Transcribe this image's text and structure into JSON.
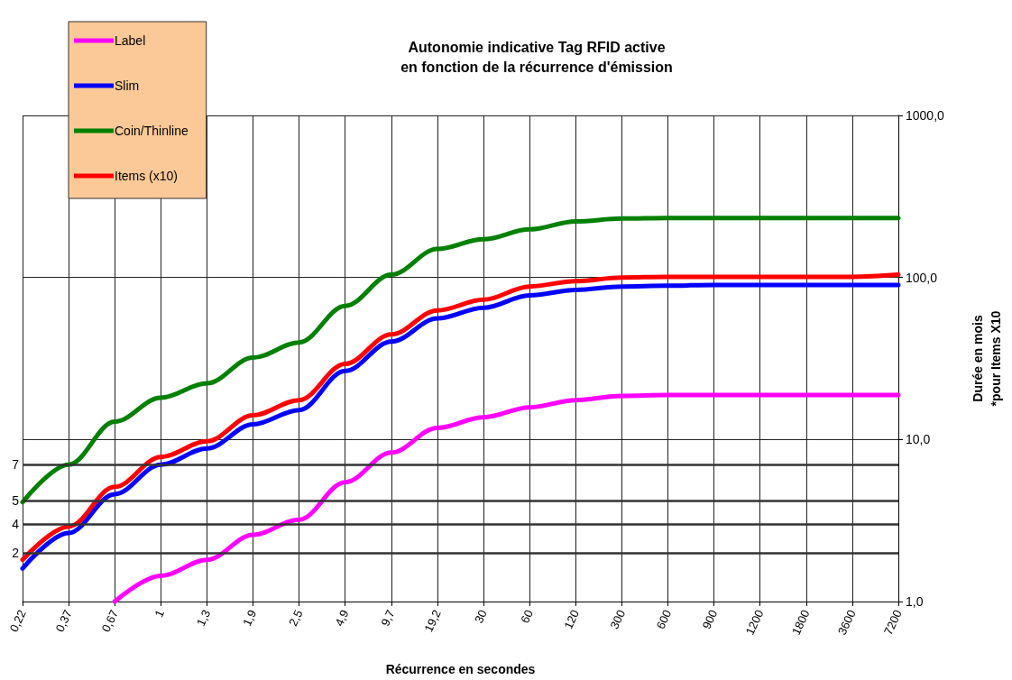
{
  "chart_data": {
    "type": "line",
    "title": "Autonomie indicative Tag RFID active\nen fonction de la récurrence d'émission",
    "xlabel": "Récurrence en secondes",
    "ylabel": "Durée en mois\n*pour Items X10",
    "categories": [
      "0,22",
      "0,37",
      "0,67",
      "1",
      "1,3",
      "1,9",
      "2,5",
      "4,9",
      "9,7",
      "19,2",
      "30",
      "60",
      "120",
      "300",
      "600",
      "900",
      "1200",
      "1800",
      "3600",
      "7200"
    ],
    "series": [
      {
        "name": "Label",
        "color": "#ff00ff",
        "values": [
          null,
          null,
          1.0,
          1.44,
          1.81,
          2.58,
          3.2,
          5.45,
          8.3,
          11.8,
          13.7,
          15.8,
          17.5,
          18.6,
          18.8,
          18.8,
          18.8,
          18.8,
          18.8,
          18.8
        ]
      },
      {
        "name": "Slim",
        "color": "#0000ff",
        "values": [
          1.6,
          2.65,
          4.6,
          7.0,
          8.8,
          12.4,
          15.2,
          26.5,
          40.2,
          55.9,
          65,
          77.6,
          83.7,
          88,
          89,
          90,
          90,
          90,
          90,
          90
        ]
      },
      {
        "name": "Coin/Thinline",
        "color": "#008000",
        "values": [
          4.1,
          7.0,
          12.9,
          18.1,
          22.2,
          32,
          39.7,
          66.7,
          104,
          150,
          172,
          198,
          222,
          231,
          233,
          233,
          233,
          233,
          233,
          233
        ]
      },
      {
        "name": "Items (x10)",
        "color": "#ff0000",
        "values": [
          1.81,
          2.9,
          5.1,
          7.8,
          9.75,
          14.1,
          17.5,
          29.3,
          44.5,
          62.6,
          72.9,
          88,
          95,
          100,
          101,
          101,
          101,
          101,
          101,
          104
        ]
      }
    ],
    "log": "y",
    "ylim": [
      1,
      1000
    ],
    "yticks": [
      {
        "value": 1,
        "label": "1,0"
      },
      {
        "value": 10,
        "label": "10,0"
      },
      {
        "value": 100,
        "label": "100,0"
      },
      {
        "value": 1000,
        "label": "1000,0"
      }
    ],
    "ref_lines": [
      {
        "axis": "y",
        "value": 7,
        "color": "#333333"
      },
      {
        "axis": "y",
        "value": 4.2,
        "color": "#333333"
      },
      {
        "axis": "y",
        "value": 3,
        "color": "#333333"
      },
      {
        "axis": "y",
        "value": 2,
        "color": "#333333"
      }
    ],
    "annotations": [
      "7",
      "5",
      "4",
      "2"
    ],
    "grid": true,
    "legend": "top left",
    "marker": "none",
    "line_style": "solid"
  }
}
